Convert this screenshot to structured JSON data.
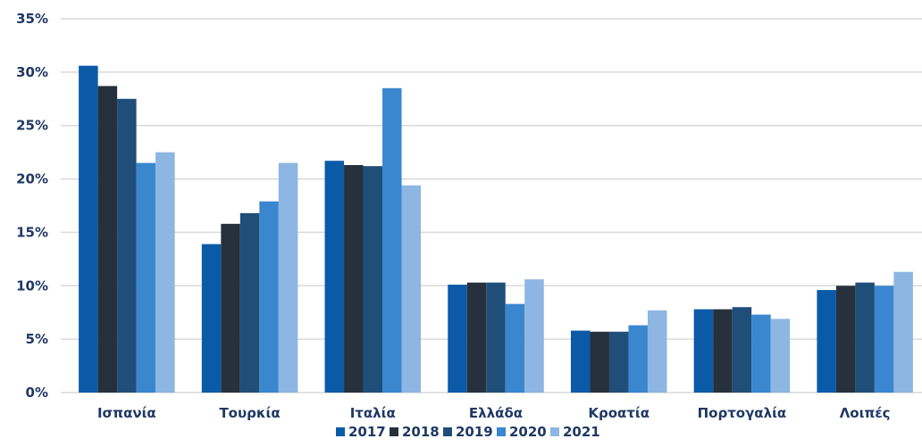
{
  "chart_data": {
    "type": "bar",
    "categories": [
      "Ισπανία",
      "Τουρκία",
      "Ιταλία",
      "Ελλάδα",
      "Κροατία",
      "Πορτογαλία",
      "Λοιπές"
    ],
    "series": [
      {
        "name": "2017",
        "color": "#0a5aa8",
        "values": [
          30.6,
          13.9,
          21.7,
          10.1,
          5.8,
          7.8,
          9.6
        ]
      },
      {
        "name": "2018",
        "color": "#27313d",
        "values": [
          28.7,
          15.8,
          21.3,
          10.3,
          5.7,
          7.8,
          10.0
        ]
      },
      {
        "name": "2019",
        "color": "#1f4e79",
        "values": [
          27.5,
          16.8,
          21.2,
          10.3,
          5.7,
          8.0,
          10.3
        ]
      },
      {
        "name": "2020",
        "color": "#3a87d0",
        "values": [
          21.5,
          17.9,
          28.5,
          8.3,
          6.3,
          7.3,
          10.0
        ]
      },
      {
        "name": "2021",
        "color": "#8db6e2",
        "values": [
          22.5,
          21.5,
          19.4,
          10.6,
          7.7,
          6.9,
          11.3
        ]
      }
    ],
    "yticks": [
      "0%",
      "5%",
      "10%",
      "15%",
      "20%",
      "25%",
      "30%",
      "35%"
    ],
    "ylim": [
      0,
      35
    ],
    "grid": true,
    "legend_position": "bottom",
    "axis_color": "#d9d9d9",
    "text_color": "#1f3864"
  }
}
